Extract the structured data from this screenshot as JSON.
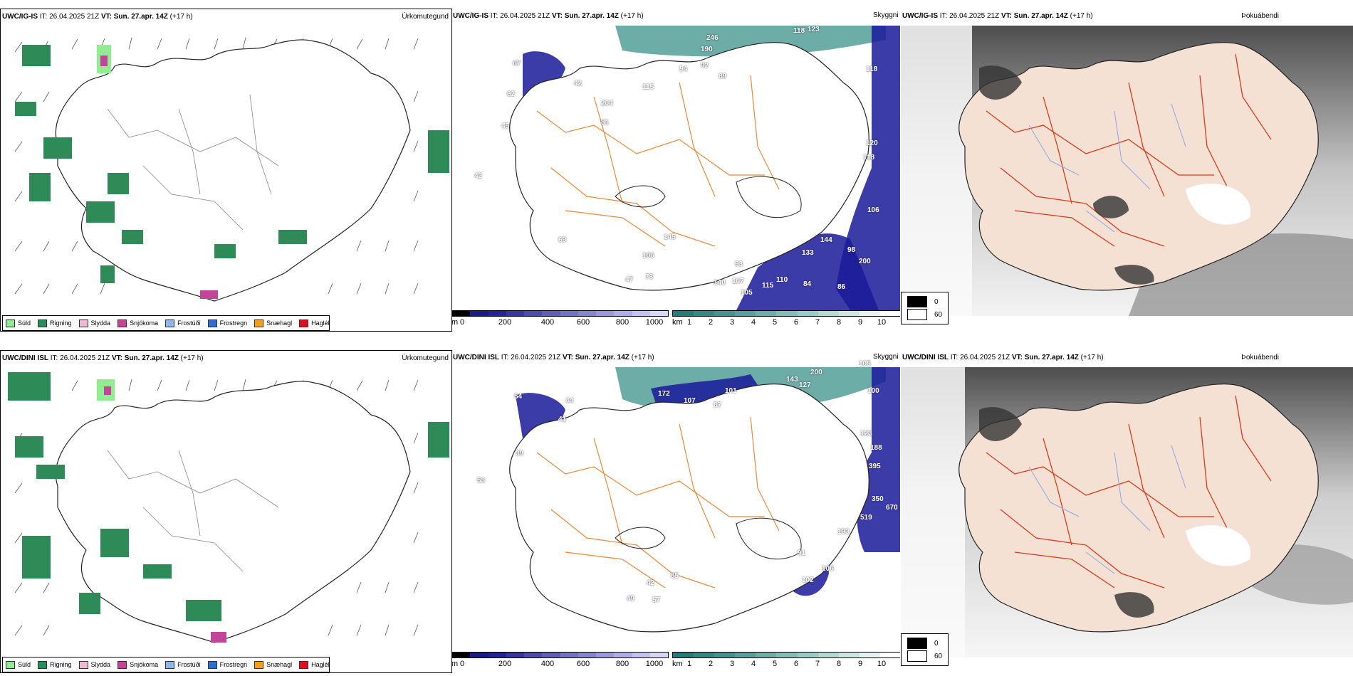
{
  "rows": [
    {
      "model": "UWC/IG-IS",
      "it_label": "IT: 26.04.2025 21Z",
      "vt_label": "VT: Sun. 27.apr. 14Z",
      "lead": "(+17 h)",
      "precip_title": "Úrkomutegund",
      "vis_title": "Skyggni",
      "fog_title": "Þokuábendi",
      "vis_labels": [
        "246",
        "190",
        "118",
        "123",
        "89",
        "92",
        "94",
        "115",
        "42",
        "67",
        "62",
        "81",
        "45",
        "42",
        "204",
        "118",
        "120",
        "118",
        "106",
        "144",
        "98",
        "200",
        "133",
        "93",
        "107",
        "110",
        "84",
        "86",
        "140",
        "115",
        "105",
        "106",
        "145",
        "47",
        "73",
        "69"
      ]
    },
    {
      "model": "UWC/DINI ISL",
      "it_label": "IT: 26.04.2025 21Z",
      "vt_label": "VT: Sun. 27.apr. 14Z",
      "lead": "(+17 h)",
      "precip_title": "Úrkomutegund",
      "vis_title": "Skyggni",
      "fog_title": "Þokuábendi",
      "vis_labels": [
        "105",
        "100",
        "200",
        "143",
        "127",
        "101",
        "172",
        "107",
        "87",
        "44",
        "41",
        "54",
        "123",
        "188",
        "395",
        "350",
        "670",
        "519",
        "193",
        "91",
        "106",
        "102",
        "85",
        "49",
        "57",
        "42",
        "53",
        "39"
      ]
    }
  ],
  "precip_legend": [
    {
      "label": "Súld",
      "color": "#90ee90"
    },
    {
      "label": "Rigning",
      "color": "#2e8b57"
    },
    {
      "label": "Slydda",
      "color": "#f4b6d2"
    },
    {
      "label": "Snjókoma",
      "color": "#c2459a"
    },
    {
      "label": "Frostúði",
      "color": "#8fb8f0"
    },
    {
      "label": "Frostregn",
      "color": "#2f6fc8"
    },
    {
      "label": "Snæhagl",
      "color": "#f0a020"
    },
    {
      "label": "Haglél",
      "color": "#e0101a"
    }
  ],
  "height_bar": {
    "unit": "m",
    "ticks": [
      "0",
      "200",
      "400",
      "600",
      "800",
      "1000"
    ],
    "colors": [
      "#000000",
      "#1a1a8c",
      "#23239e",
      "#3535a8",
      "#4a4ab2",
      "#5e5ebc",
      "#7272c6",
      "#8686d0",
      "#9a9ada",
      "#aeaee4",
      "#c2c2ee",
      "#d6d6f8"
    ]
  },
  "vis_bar": {
    "unit": "km",
    "ticks": [
      "1",
      "2",
      "3",
      "4",
      "5",
      "6",
      "7",
      "8",
      "9",
      "10"
    ],
    "colors": [
      "#1f7f78",
      "#2f8a83",
      "#409590",
      "#55a29c",
      "#6aafa9",
      "#82bdb7",
      "#9acbc6",
      "#b3d9d5",
      "#cce6e3",
      "#e4f2f1",
      "#ffffff"
    ]
  },
  "fog_legend": {
    "black": "0",
    "white": "60"
  },
  "colors": {
    "land": "#f5e1d3",
    "roads_orange": "#e8883a",
    "roads_red": "#d93a1a",
    "rivers": "#8aa6e8",
    "rain": "#2e8b57",
    "fog_dark": "#3a3a3a",
    "vis_blue": "#1a1a9a",
    "vis_teal": "#2f8a83"
  }
}
